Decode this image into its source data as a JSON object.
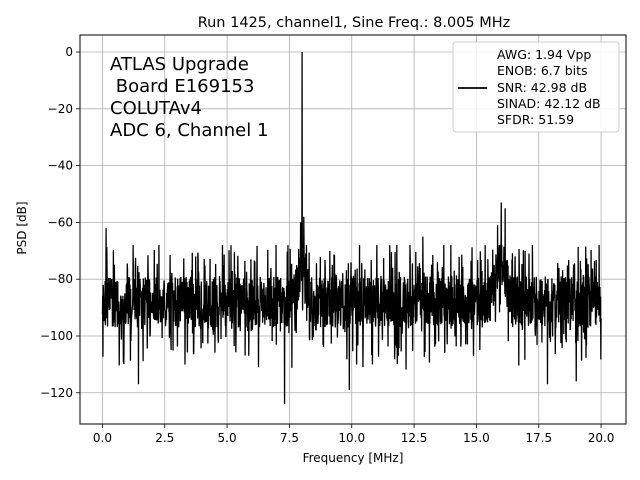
{
  "chart_data": {
    "type": "line",
    "title": "Run 1425, channel1, Sine Freq.: 8.005 MHz",
    "xlabel": "Frequency [MHz]",
    "ylabel": "PSD [dB]",
    "xlim": [
      -0.9,
      21.0
    ],
    "ylim": [
      -131,
      6
    ],
    "grid": true,
    "x_ticks": [
      "0.0",
      "2.5",
      "5.0",
      "7.5",
      "10.0",
      "12.5",
      "15.0",
      "17.5",
      "20.0"
    ],
    "y_ticks": [
      "0",
      "−20",
      "−40",
      "−60",
      "−80",
      "−100",
      "−120"
    ],
    "x_tick_values": [
      0,
      2.5,
      5,
      7.5,
      10,
      12.5,
      15,
      17.5,
      20
    ],
    "y_tick_values": [
      0,
      -20,
      -40,
      -60,
      -80,
      -100,
      -120
    ],
    "annotation_lines": [
      "ATLAS Upgrade",
      " Board E169153",
      "COLUTAv4",
      "ADC 6, Channel 1"
    ],
    "legend": {
      "position": "top-right",
      "lines": [
        "AWG: 1.94 Vpp",
        "ENOB: 6.7 bits",
        "SNR: 42.98 dB",
        "SINAD: 42.12 dB",
        "SFDR: 51.59"
      ]
    },
    "series": [
      {
        "color": "#000000",
        "x_range": [
          0.0,
          20.0
        ],
        "noise_floor_db": -88,
        "noise_min_db": -124,
        "noise_max_db": -62,
        "peaks": [
          {
            "x": 8.005,
            "y": 0.0
          },
          {
            "x": 7.95,
            "y": -60
          },
          {
            "x": 8.08,
            "y": -58
          },
          {
            "x": 16.0,
            "y": -53
          },
          {
            "x": 16.15,
            "y": -55
          },
          {
            "x": 15.85,
            "y": -61
          },
          {
            "x": 0.15,
            "y": -62
          },
          {
            "x": 12.85,
            "y": -65
          },
          {
            "x": 7.3,
            "y": -124
          },
          {
            "x": 1.45,
            "y": -117
          },
          {
            "x": 9.9,
            "y": -119
          },
          {
            "x": 17.85,
            "y": -117
          },
          {
            "x": 19.0,
            "y": -116
          }
        ]
      }
    ]
  }
}
